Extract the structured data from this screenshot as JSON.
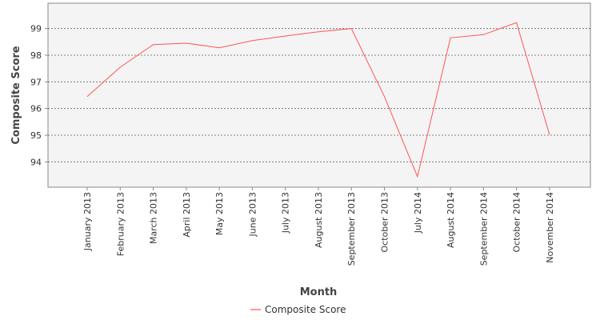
{
  "chart_data": {
    "type": "line",
    "title": "",
    "xlabel": "Month",
    "ylabel": "Composite Score",
    "categories": [
      "January 2013",
      "February 2013",
      "March 2013",
      "April 2013",
      "May 2013",
      "June 2013",
      "July 2013",
      "August 2013",
      "September 2013",
      "October 2013",
      "July 2014",
      "August 2014",
      "September 2014",
      "October 2014",
      "November 2014"
    ],
    "y_ticks": [
      94,
      95,
      96,
      97,
      98,
      99
    ],
    "ylim": [
      93.05,
      99.95
    ],
    "grid": true,
    "legend_position": "bottom-center",
    "series": [
      {
        "name": "Composite Score",
        "color": "#ff5555",
        "values": [
          96.45,
          97.55,
          98.4,
          98.45,
          98.28,
          98.55,
          98.72,
          98.88,
          99.0,
          96.45,
          93.45,
          98.65,
          98.77,
          99.22,
          95.02
        ]
      }
    ]
  }
}
